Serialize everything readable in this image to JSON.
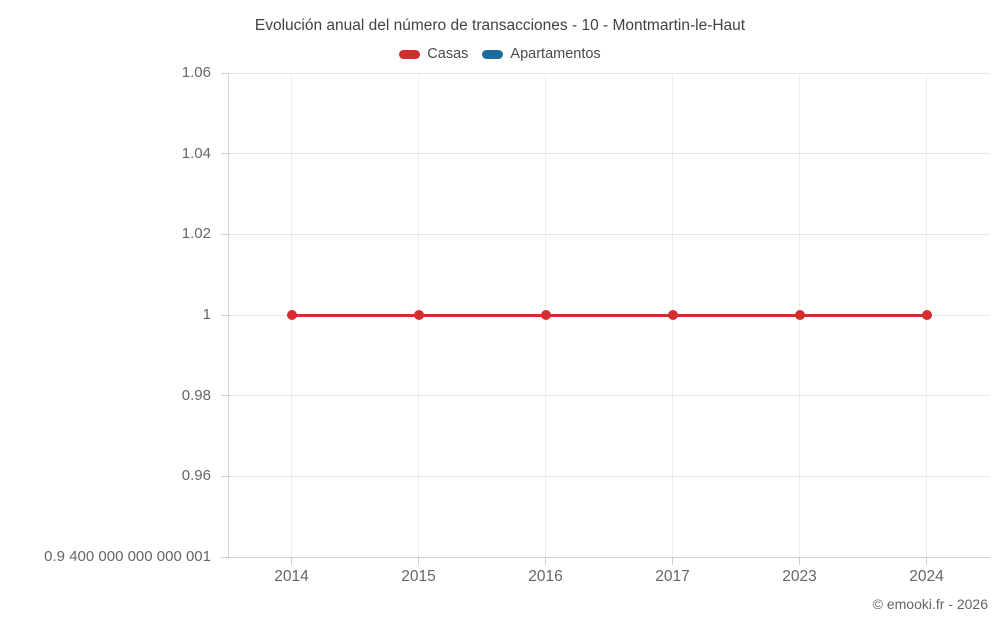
{
  "header": {
    "title": "Evolución anual del número de transacciones - 10 - Montmartin-le-Haut"
  },
  "legend": {
    "items": [
      {
        "label": "Casas",
        "color": "#d32d30"
      },
      {
        "label": "Apartamentos",
        "color": "#1c6d9c"
      }
    ]
  },
  "footer": {
    "copyright": "© emooki.fr - 2026"
  },
  "chart_data": {
    "type": "line",
    "title": "Evolución anual del número de transacciones - 10 - Montmartin-le-Haut",
    "categories": [
      "2014",
      "2015",
      "2016",
      "2017",
      "2023",
      "2024"
    ],
    "series": [
      {
        "name": "Casas",
        "color": "#d32d30",
        "marker": "circle",
        "values": [
          1,
          1,
          1,
          1,
          1,
          1
        ],
        "visible": true
      },
      {
        "name": "Apartamentos",
        "color": "#1c6d9c",
        "marker": "circle",
        "values": [],
        "visible": false
      }
    ],
    "yticks": [
      {
        "value": 1.06,
        "label": "1.06"
      },
      {
        "value": 1.04,
        "label": "1.04"
      },
      {
        "value": 1.02,
        "label": "1.02"
      },
      {
        "value": 1.0,
        "label": "1"
      },
      {
        "value": 0.98,
        "label": "0.98"
      },
      {
        "value": 0.96,
        "label": "0.96"
      },
      {
        "value": 0.94,
        "label": "0.9 400 000 000 000 001"
      }
    ],
    "xlabel": "",
    "ylabel": "",
    "ylim": [
      0.94,
      1.06
    ],
    "grid": true,
    "legend_position": "top"
  }
}
